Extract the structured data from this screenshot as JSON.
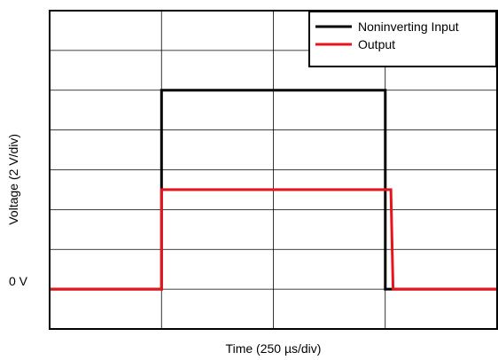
{
  "chart_data": {
    "type": "line",
    "title": "",
    "xlabel": "Time (250 µs/div)",
    "ylabel": "Voltage (2 V/div)",
    "x_divisions": 4,
    "y_divisions": 8,
    "y_zero_label": "0 V",
    "y_zero_division": 1,
    "xlim_div": [
      0,
      4
    ],
    "ylim_div": [
      0,
      8
    ],
    "grid": true,
    "legend_position": "top-right",
    "series": [
      {
        "name": "Noninverting Input",
        "color": "#000000",
        "x_div": [
          0,
          1,
          1,
          3,
          3,
          4
        ],
        "y_div": [
          1,
          1,
          6,
          6,
          1,
          1
        ]
      },
      {
        "name": "Output",
        "color": "#e8141b",
        "x_div": [
          0,
          1,
          1,
          3.05,
          3.07,
          4
        ],
        "y_div": [
          1,
          1,
          3.5,
          3.5,
          1,
          1
        ]
      }
    ]
  }
}
